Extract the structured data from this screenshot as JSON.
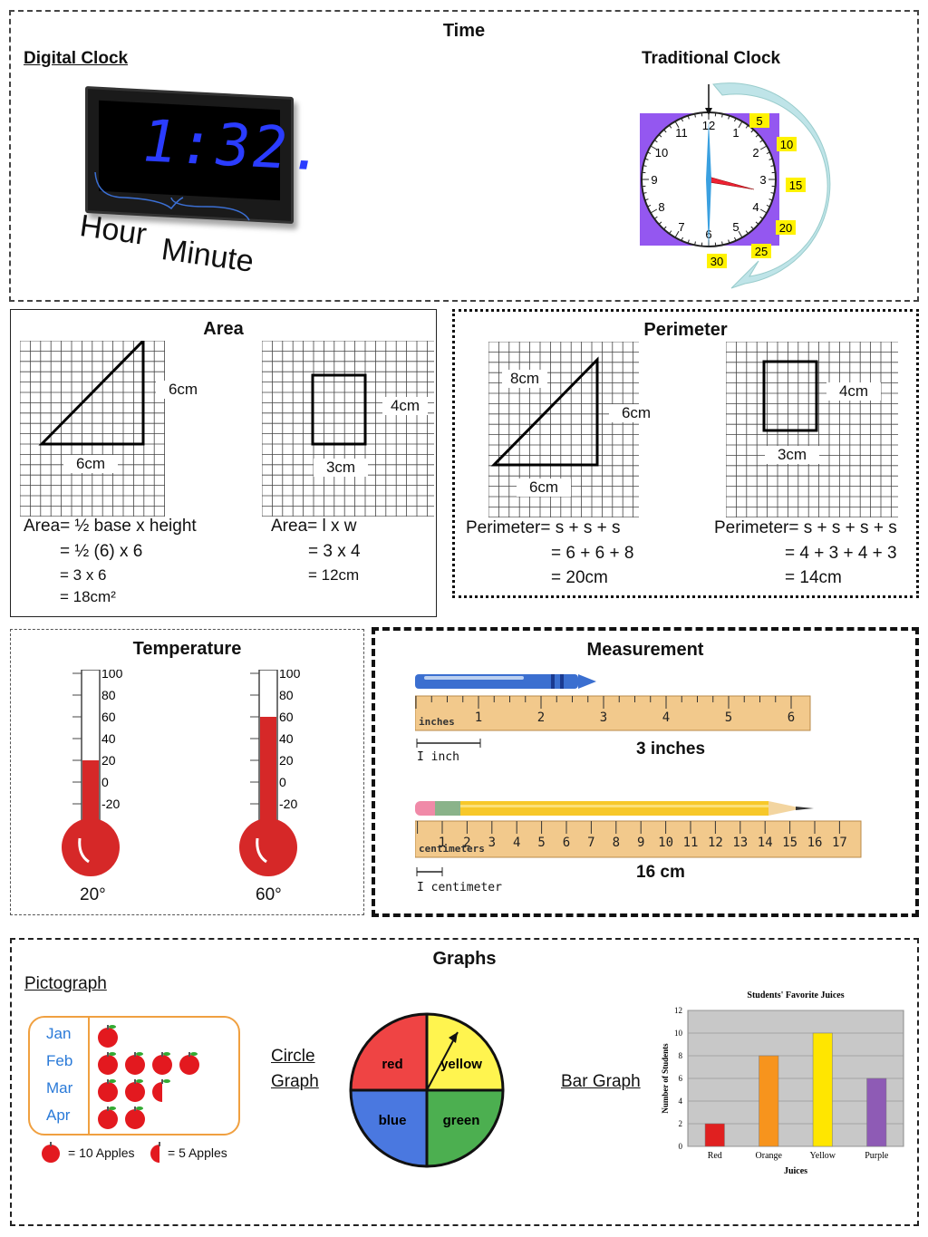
{
  "time": {
    "title": "Time",
    "digital_label": "Digital Clock",
    "digital_display": "1:32.",
    "hour_label": "Hour",
    "minute_label": "Minute",
    "traditional_label": "Traditional Clock",
    "clock_numbers": [
      "12",
      "1",
      "2",
      "3",
      "4",
      "5",
      "6",
      "7",
      "8",
      "9",
      "10",
      "11"
    ],
    "minute_tags": [
      "5",
      "10",
      "15",
      "20",
      "25",
      "30"
    ]
  },
  "area": {
    "title": "Area",
    "tri_side": "6cm",
    "tri_base": "6cm",
    "rect_side": "4cm",
    "rect_base": "3cm",
    "tri_formula": [
      "Area= ½ base x height",
      "= ½ (6) x 6",
      "= 3 x 6",
      "= 18cm²"
    ],
    "rect_formula": [
      "Area= l x w",
      "= 3 x 4",
      "= 12cm"
    ]
  },
  "perimeter": {
    "title": "Perimeter",
    "tri_hyp": "8cm",
    "tri_side": "6cm",
    "tri_base": "6cm",
    "rect_side": "4cm",
    "rect_base": "3cm",
    "tri_formula": [
      "Perimeter= s + s + s",
      "= 6 + 6 + 8",
      "= 20cm"
    ],
    "rect_formula": [
      "Perimeter= s + s + s + s",
      "= 4 + 3 + 4 + 3",
      "= 14cm"
    ]
  },
  "temperature": {
    "title": "Temperature",
    "scale": [
      "100",
      "80",
      "60",
      "40",
      "20",
      "0",
      "-20"
    ],
    "left_reading": "20°",
    "right_reading": "60°",
    "left_value": 20,
    "right_value": 60,
    "red": "#d62828"
  },
  "measurement": {
    "title": "Measurement",
    "inch_ruler_label": "inches",
    "inch_numbers": [
      "1",
      "2",
      "3",
      "4",
      "5",
      "6"
    ],
    "inch_legend": "I inch",
    "inch_result": "3 inches",
    "cm_ruler_label": "centimeters",
    "cm_numbers": [
      "1",
      "2",
      "3",
      "4",
      "5",
      "6",
      "7",
      "8",
      "9",
      "10",
      "11",
      "12",
      "13",
      "14",
      "15",
      "16",
      "17"
    ],
    "cm_legend": "I centimeter",
    "cm_result": "16 cm"
  },
  "graphs": {
    "title": "Graphs",
    "pictograph_label": "Pictograph",
    "months": [
      "Jan",
      "Feb",
      "Mar",
      "Apr"
    ],
    "apple_counts": [
      1,
      4,
      2.5,
      2
    ],
    "legend_full": "= 10 Apples",
    "legend_half": "= 5 Apples",
    "circle_label_1": "Circle",
    "circle_label_2": "Graph",
    "pie_labels": [
      "red",
      "yellow",
      "blue",
      "green"
    ],
    "bar_label": "Bar Graph"
  },
  "chart_data": {
    "type": "bar",
    "title": "Students' Favorite Juices",
    "categories": [
      "Red",
      "Orange",
      "Yellow",
      "Purple"
    ],
    "values": [
      2,
      8,
      10,
      6
    ],
    "colors": [
      "#e02020",
      "#f7941d",
      "#ffe600",
      "#8e5bb5"
    ],
    "xlabel": "Juices",
    "ylabel": "Number of Students",
    "ylim": [
      0,
      12
    ],
    "yticks": [
      "0",
      "2",
      "4",
      "6",
      "8",
      "10",
      "12"
    ]
  }
}
